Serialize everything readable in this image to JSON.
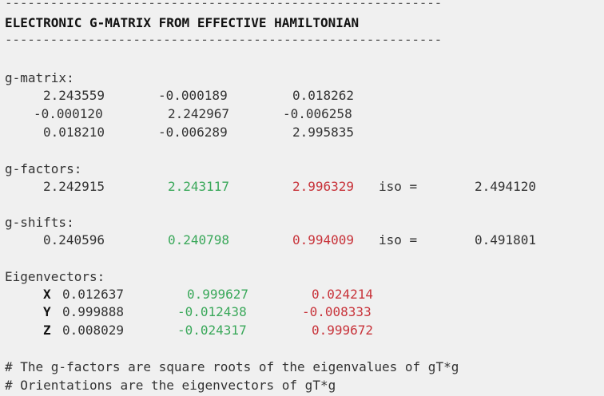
{
  "header": {
    "rule": "----------------------------------------------------------",
    "title": "ELECTRONIC G-MATRIX FROM EFFECTIVE HAMILTONIAN"
  },
  "gmatrix": {
    "label": "g-matrix:",
    "rows": [
      [
        "2.243559",
        "-0.000189",
        "0.018262"
      ],
      [
        "-0.000120",
        "2.242967",
        "-0.006258"
      ],
      [
        "0.018210",
        "-0.006289",
        "2.995835"
      ]
    ]
  },
  "gfactors": {
    "label": "g-factors:",
    "values": [
      "2.242915",
      "2.243117",
      "2.996329"
    ],
    "iso_label": "iso =",
    "iso_value": "2.494120"
  },
  "gshifts": {
    "label": "g-shifts:",
    "values": [
      "0.240596",
      "0.240798",
      "0.994009"
    ],
    "iso_label": "iso =",
    "iso_value": "0.491801"
  },
  "eigenvectors": {
    "label": "Eigenvectors:",
    "rows": [
      {
        "axis": "X",
        "values": [
          "0.012637",
          "0.999627",
          "0.024214"
        ]
      },
      {
        "axis": "Y",
        "values": [
          "0.999888",
          "-0.012438",
          "-0.008333"
        ]
      },
      {
        "axis": "Z",
        "values": [
          "0.008029",
          "-0.024317",
          "0.999672"
        ]
      }
    ]
  },
  "notes": [
    "# The g-factors are square roots of the eigenvalues of gT*g",
    "# Orientations are the eigenvectors of gT*g"
  ],
  "colors": {
    "green": "#3aa85a",
    "red": "#c8333a"
  }
}
